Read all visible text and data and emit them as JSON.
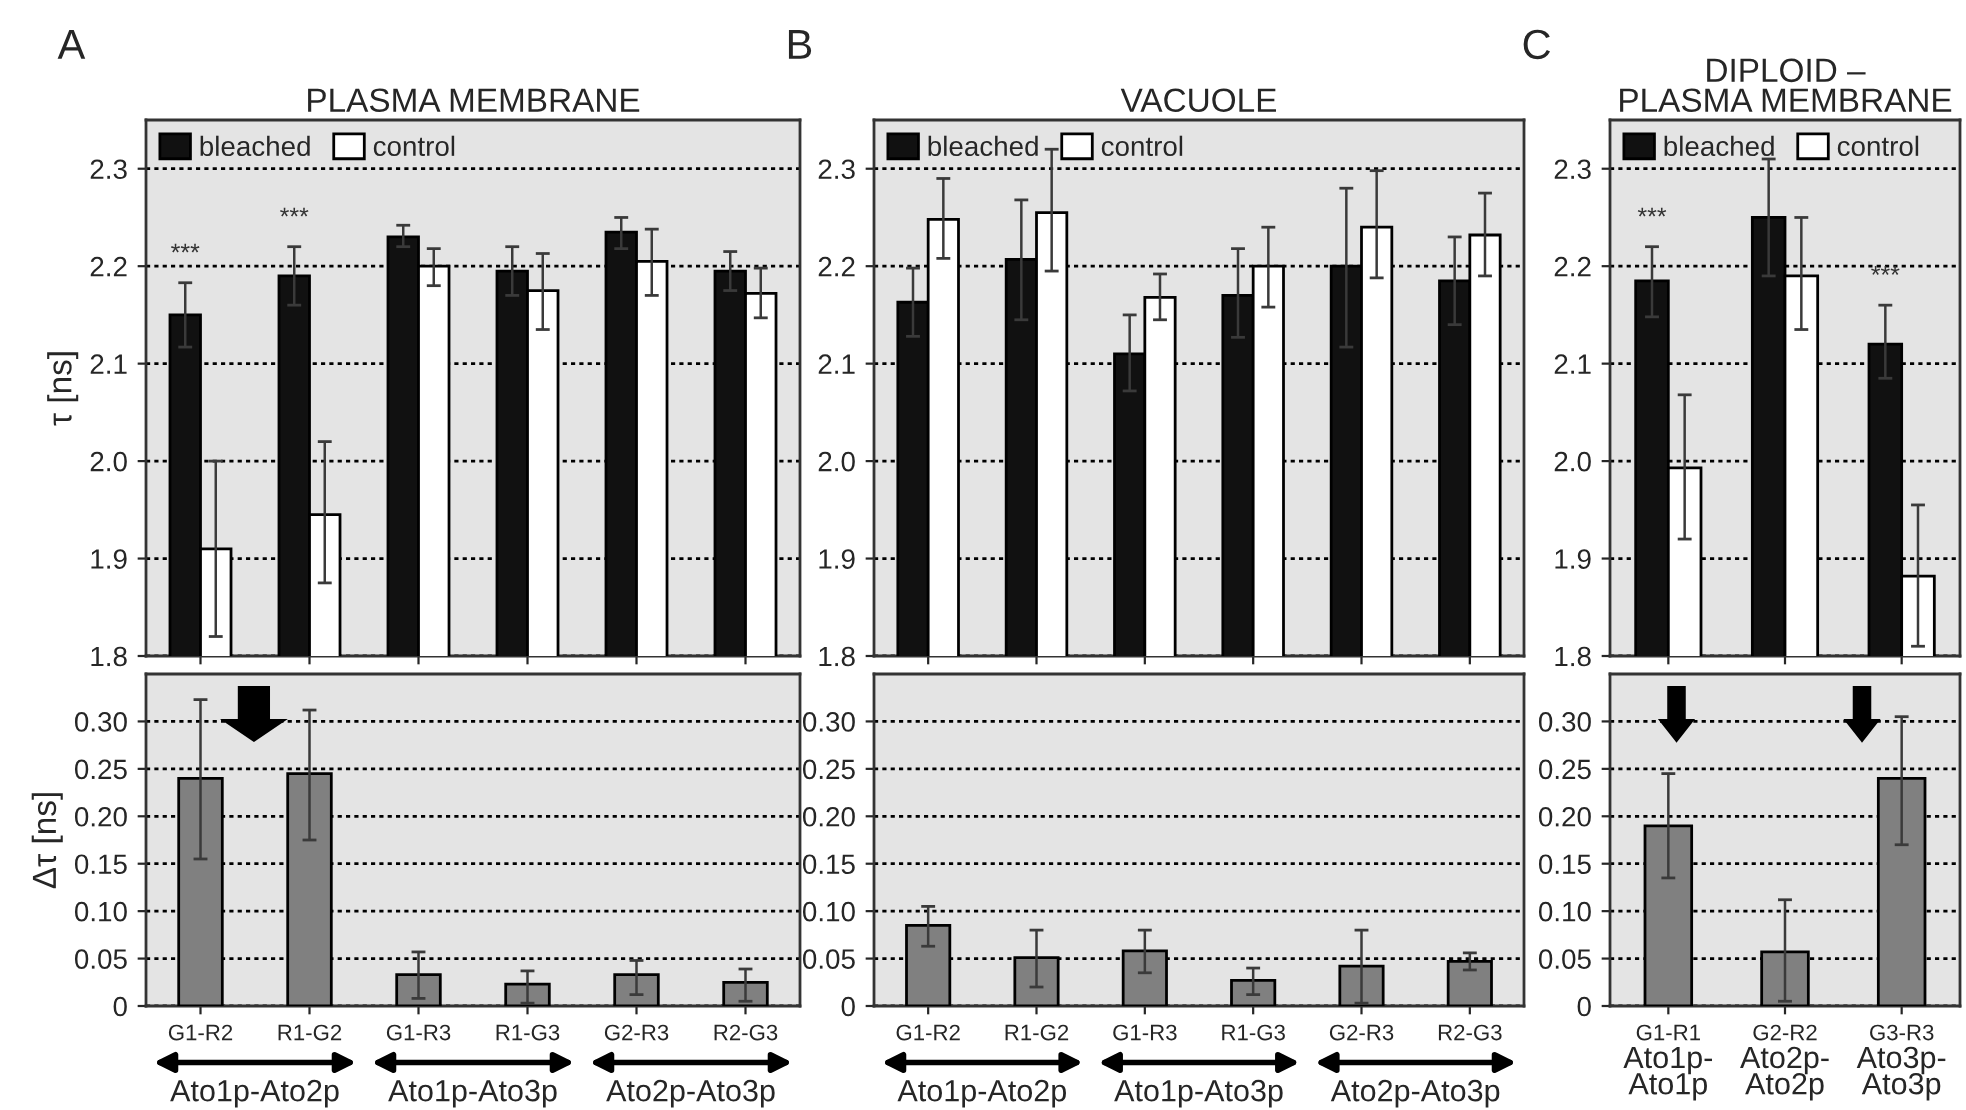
{
  "chart_data": [
    {
      "type": "bar",
      "title": "PLASMA MEMBRANE",
      "ylabel": "τ [ns]",
      "categories": [
        "G1-R2",
        "R1-G2",
        "G1-R3",
        "R1-G3",
        "G2-R3",
        "R2-G3"
      ],
      "series": [
        {
          "name": "bleached",
          "color": "#111111",
          "values": [
            2.15,
            2.19,
            2.23,
            2.195,
            2.235,
            2.195
          ],
          "errors": [
            [
              2.117,
              2.183
            ],
            [
              2.16,
              2.22
            ],
            [
              2.22,
              2.242
            ],
            [
              2.17,
              2.22
            ],
            [
              2.218,
              2.25
            ],
            [
              2.175,
              2.215
            ]
          ]
        },
        {
          "name": "control",
          "color": "#ffffff",
          "values": [
            1.91,
            1.945,
            2.2,
            2.175,
            2.205,
            2.172
          ],
          "errors": [
            [
              1.82,
              2.0
            ],
            [
              1.875,
              2.02
            ],
            [
              2.18,
              2.218
            ],
            [
              2.135,
              2.213
            ],
            [
              2.17,
              2.238
            ],
            [
              2.147,
              2.198
            ]
          ]
        }
      ],
      "ylim": [
        1.8,
        2.35
      ],
      "yticks": [
        1.8,
        1.9,
        {
          "value": 2,
          "label": "2.0"
        },
        2.1,
        2.2,
        2.3
      ],
      "grid": "y",
      "legend": "top left",
      "tick_labels": "y",
      "annotations": [
        "A",
        {
          "text": "***",
          "x": "G1-R2",
          "y": 2.183
        },
        {
          "text": "***",
          "x": "R1-G2",
          "y": 2.22
        }
      ]
    },
    {
      "type": "bar",
      "ylabel": "Δτ [ns]",
      "categories": [
        "G1-R2",
        "R1-G2",
        "G1-R3",
        "R1-G3",
        "G2-R3",
        "R2-G3"
      ],
      "series": [
        {
          "color": "#808080",
          "values": [
            0.24,
            0.245,
            0.033,
            0.023,
            0.033,
            0.025
          ],
          "errors": [
            [
              0.155,
              0.323
            ],
            [
              0.175,
              0.312
            ],
            [
              0.008,
              0.057
            ],
            [
              0.003,
              0.037
            ],
            [
              0.012,
              0.048
            ],
            [
              0.005,
              0.039
            ]
          ]
        }
      ],
      "ylim": [
        0,
        0.35
      ],
      "yticks": [
        0,
        0.05,
        {
          "value": 0.1,
          "label": "0.10"
        },
        0.15,
        {
          "value": 0.2,
          "label": "0.20"
        },
        0.25,
        {
          "value": 0.3,
          "label": "0.30"
        }
      ],
      "grid": "y",
      "annotations": [
        "Ato1p-Ato2p",
        "Ato1p-Ato3p",
        "Ato2p-Ato3p"
      ]
    },
    {
      "type": "bar",
      "title": "VACUOLE",
      "categories": [
        "G1-R2",
        "R1-G2",
        "G1-R3",
        "R1-G3",
        "G2-R3",
        "R2-G3"
      ],
      "series": [
        {
          "name": "bleached",
          "color": "#111111",
          "values": [
            2.163,
            2.207,
            2.11,
            2.17,
            2.2,
            2.185
          ],
          "errors": [
            [
              2.128,
              2.198
            ],
            [
              2.145,
              2.268
            ],
            [
              2.072,
              2.15
            ],
            [
              2.127,
              2.218
            ],
            [
              2.117,
              2.28
            ],
            [
              2.14,
              2.23
            ]
          ]
        },
        {
          "name": "control",
          "color": "#ffffff",
          "values": [
            2.248,
            2.255,
            2.168,
            2.2,
            2.24,
            2.232
          ],
          "errors": [
            [
              2.208,
              2.29
            ],
            [
              2.195,
              2.32
            ],
            [
              2.145,
              2.192
            ],
            [
              2.158,
              2.24
            ],
            [
              2.188,
              2.298
            ],
            [
              2.19,
              2.275
            ]
          ]
        }
      ],
      "ylim": [
        1.8,
        2.35
      ],
      "yticks": [
        1.8,
        1.9,
        {
          "value": 2,
          "label": "2.0"
        },
        2.1,
        2.2,
        2.3
      ],
      "grid": "y",
      "legend": "top left",
      "tick_labels": "y",
      "annotations": [
        "B"
      ]
    },
    {
      "type": "bar",
      "categories": [
        "G1-R2",
        "R1-G2",
        "G1-R3",
        "R1-G3",
        "G2-R3",
        "R2-G3"
      ],
      "series": [
        {
          "color": "#808080",
          "values": [
            0.085,
            0.051,
            0.058,
            0.027,
            0.042,
            0.047
          ],
          "errors": [
            [
              0.063,
              0.105
            ],
            [
              0.02,
              0.08
            ],
            [
              0.035,
              0.08
            ],
            [
              0.012,
              0.04
            ],
            [
              0.003,
              0.08
            ],
            [
              0.038,
              0.056
            ]
          ]
        }
      ],
      "ylim": [
        0,
        0.35
      ],
      "yticks": [
        0,
        0.05,
        {
          "value": 0.1,
          "label": "0.10"
        },
        0.15,
        {
          "value": 0.2,
          "label": "0.20"
        },
        0.25,
        {
          "value": 0.3,
          "label": "0.30"
        }
      ],
      "grid": "y",
      "annotations": [
        "Ato1p-Ato2p",
        "Ato1p-Ato3p",
        "Ato2p-Ato3p"
      ]
    },
    {
      "type": "bar",
      "title": "DIPLOID –\nPLASMA MEMBRANE",
      "categories": [
        "G1-R1",
        "G2-R2",
        "G3-R3"
      ],
      "series": [
        {
          "name": "bleached",
          "color": "#111111",
          "values": [
            2.185,
            2.25,
            2.12
          ],
          "errors": [
            [
              2.148,
              2.22
            ],
            [
              2.19,
              2.31
            ],
            [
              2.085,
              2.16
            ]
          ]
        },
        {
          "name": "control",
          "color": "#ffffff",
          "values": [
            1.993,
            2.19,
            1.882
          ],
          "errors": [
            [
              1.92,
              2.068
            ],
            [
              2.135,
              2.25
            ],
            [
              1.81,
              1.955
            ]
          ]
        }
      ],
      "ylim": [
        1.8,
        2.35
      ],
      "yticks": [
        1.8,
        1.9,
        {
          "value": 2,
          "label": "2.0"
        },
        2.1,
        2.2,
        2.3
      ],
      "grid": "y",
      "legend": "top left",
      "tick_labels": "y",
      "annotations": [
        "C",
        {
          "text": "***",
          "x": "G1-R1",
          "y": 2.22
        },
        {
          "text": "***",
          "x": "G3-R3",
          "y": 2.16
        }
      ]
    },
    {
      "type": "bar",
      "categories": [
        "G1-R1",
        "G2-R2",
        "G3-R3"
      ],
      "series": [
        {
          "color": "#808080",
          "values": [
            0.19,
            0.057,
            0.24
          ],
          "errors": [
            [
              0.135,
              0.245
            ],
            [
              0.005,
              0.112
            ],
            [
              0.17,
              0.305
            ]
          ]
        }
      ],
      "ylim": [
        0,
        0.35
      ],
      "yticks": [
        0,
        0.05,
        {
          "value": 0.1,
          "label": "0.10"
        },
        0.15,
        {
          "value": 0.2,
          "label": "0.20"
        },
        0.25,
        {
          "value": 0.3,
          "label": "0.30"
        }
      ],
      "grid": "y",
      "annotations": [
        "Ato1p-\nAto1p",
        "Ato2p-\nAto2p",
        "Ato3p-\nAto3p"
      ]
    }
  ]
}
